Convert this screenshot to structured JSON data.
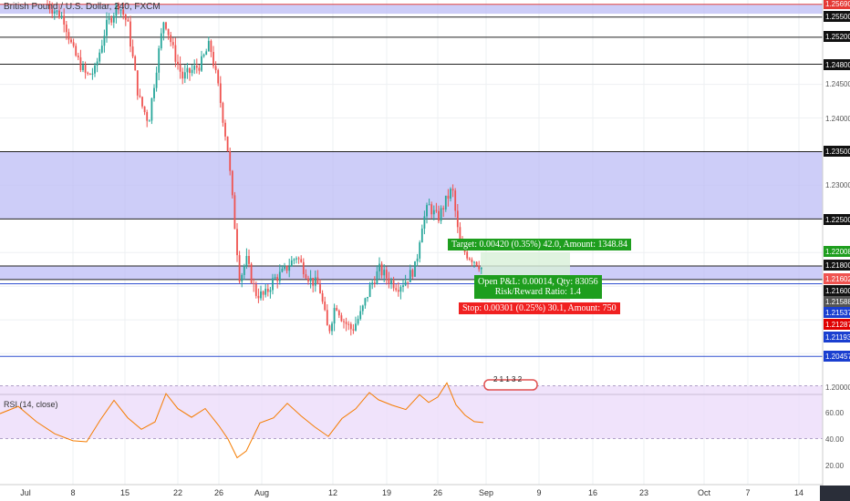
{
  "symbol": {
    "title": "British Pound / U.S. Dollar, 240, FXCM"
  },
  "indicator": {
    "label": "RSI (14, close)"
  },
  "colors": {
    "up": "#26a69a",
    "down": "#ef5350",
    "zone_fill": "#bcbcf5",
    "rsi_line": "#f57c00",
    "rsi_band": "#ecdcfa",
    "target": "#1e9e1e",
    "stop": "#f02020"
  },
  "price_axis": {
    "ticks": [
      "1.25690",
      "1.25500",
      "1.25200",
      "1.24800",
      "1.24500",
      "1.24000",
      "1.23500",
      "1.23000",
      "1.22500",
      "1.22008",
      "1.21800",
      "1.21602",
      "1.21600",
      "1.21588",
      "1.21537",
      "1.21287",
      "1.21193",
      "1.20457",
      "1.20000"
    ]
  },
  "rsi_axis": {
    "ticks": [
      "60.00",
      "40.00",
      "20.00"
    ]
  },
  "time_axis": {
    "ticks": [
      "Jul",
      "8",
      "15",
      "22",
      "26",
      "Aug",
      "12",
      "19",
      "26",
      "Sep",
      "9",
      "16",
      "23",
      "Oct",
      "7",
      "14"
    ]
  },
  "trade": {
    "target": "Target: 0.00420 (0.35%) 42.0, Amount: 1348.84",
    "pnl": "Open P&L: 0.00014, Qty: 83056",
    "rr": "Risk/Reward Ratio: 1.4",
    "stop": "Stop: 0.00301 (0.25%) 30.1, Amount: 750"
  },
  "event_marker": {
    "digits": "2 1 1   3    2"
  }
}
